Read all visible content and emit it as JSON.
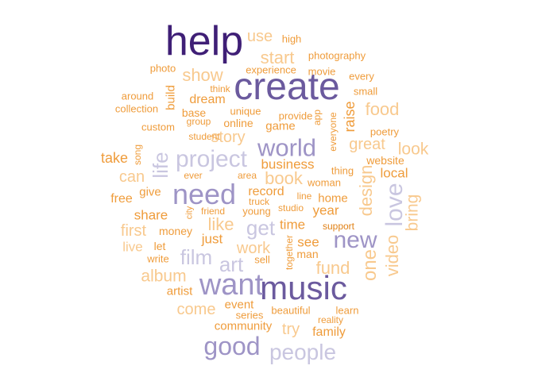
{
  "colors": {
    "darkest": "#3f1f76",
    "dark": "#6b5a9e",
    "mid": "#9e94c6",
    "light": "#c9c6e0",
    "peach": "#f8c98e",
    "orange": "#ef9c3b",
    "amber": "#e08116"
  },
  "words": [
    {
      "text": "help",
      "freq": 10
    },
    {
      "text": "create",
      "freq": 9
    },
    {
      "text": "music",
      "freq": 8
    },
    {
      "text": "want",
      "freq": 8
    },
    {
      "text": "need",
      "freq": 7
    },
    {
      "text": "world",
      "freq": 6
    },
    {
      "text": "good",
      "freq": 6
    },
    {
      "text": "new",
      "freq": 6
    },
    {
      "text": "project",
      "freq": 6
    },
    {
      "text": "people",
      "freq": 5
    },
    {
      "text": "love",
      "freq": 5
    },
    {
      "text": "life",
      "freq": 5
    },
    {
      "text": "get",
      "freq": 5
    },
    {
      "text": "film",
      "freq": 5
    },
    {
      "text": "art",
      "freq": 5
    },
    {
      "text": "one",
      "freq": 4
    },
    {
      "text": "video",
      "freq": 4
    },
    {
      "text": "book",
      "freq": 4
    },
    {
      "text": "like",
      "freq": 4
    },
    {
      "text": "fund",
      "freq": 4
    },
    {
      "text": "design",
      "freq": 4
    },
    {
      "text": "start",
      "freq": 4
    },
    {
      "text": "show",
      "freq": 4
    },
    {
      "text": "food",
      "freq": 4
    },
    {
      "text": "great",
      "freq": 4
    },
    {
      "text": "look",
      "freq": 4
    },
    {
      "text": "bring",
      "freq": 4
    },
    {
      "text": "album",
      "freq": 4
    },
    {
      "text": "work",
      "freq": 4
    },
    {
      "text": "try",
      "freq": 4
    },
    {
      "text": "use",
      "freq": 4
    },
    {
      "text": "story",
      "freq": 4
    },
    {
      "text": "can",
      "freq": 4
    },
    {
      "text": "first",
      "freq": 4
    },
    {
      "text": "come",
      "freq": 4
    },
    {
      "text": "raise",
      "freq": 3
    },
    {
      "text": "business",
      "freq": 3
    },
    {
      "text": "local",
      "freq": 3
    },
    {
      "text": "time",
      "freq": 3
    },
    {
      "text": "year",
      "freq": 3
    },
    {
      "text": "see",
      "freq": 3
    },
    {
      "text": "record",
      "freq": 3
    },
    {
      "text": "home",
      "freq": 3
    },
    {
      "text": "take",
      "freq": 3
    },
    {
      "text": "share",
      "freq": 3
    },
    {
      "text": "just",
      "freq": 3
    },
    {
      "text": "dream",
      "freq": 3
    },
    {
      "text": "family",
      "freq": 3
    },
    {
      "text": "community",
      "freq": 3
    },
    {
      "text": "event",
      "freq": 3
    },
    {
      "text": "artist",
      "freq": 3
    },
    {
      "text": "live",
      "freq": 3
    },
    {
      "text": "free",
      "freq": 3
    },
    {
      "text": "game",
      "freq": 3
    },
    {
      "text": "give",
      "freq": 3
    },
    {
      "text": "build",
      "freq": 3
    },
    {
      "text": "money",
      "freq": 2
    },
    {
      "text": "base",
      "freq": 2
    },
    {
      "text": "online",
      "freq": 2
    },
    {
      "text": "website",
      "freq": 2
    },
    {
      "text": "let",
      "freq": 2
    },
    {
      "text": "write",
      "freq": 2
    },
    {
      "text": "sell",
      "freq": 2
    },
    {
      "text": "man",
      "freq": 2
    },
    {
      "text": "woman",
      "freq": 2
    },
    {
      "text": "thing",
      "freq": 2
    },
    {
      "text": "learn",
      "freq": 2
    },
    {
      "text": "beautiful",
      "freq": 2
    },
    {
      "text": "series",
      "freq": 2
    },
    {
      "text": "reality",
      "freq": 2
    },
    {
      "text": "together",
      "freq": 2
    },
    {
      "text": "support",
      "freq": 2
    },
    {
      "text": "studio",
      "freq": 2
    },
    {
      "text": "young",
      "freq": 2
    },
    {
      "text": "truck",
      "freq": 2
    },
    {
      "text": "line",
      "freq": 2
    },
    {
      "text": "friend",
      "freq": 2
    },
    {
      "text": "city",
      "freq": 2
    },
    {
      "text": "area",
      "freq": 2
    },
    {
      "text": "ever",
      "freq": 2
    },
    {
      "text": "song",
      "freq": 2
    },
    {
      "text": "student",
      "freq": 2
    },
    {
      "text": "group",
      "freq": 2
    },
    {
      "text": "custom",
      "freq": 2
    },
    {
      "text": "collection",
      "freq": 2
    },
    {
      "text": "around",
      "freq": 2
    },
    {
      "text": "photo",
      "freq": 2
    },
    {
      "text": "think",
      "freq": 2
    },
    {
      "text": "unique",
      "freq": 2
    },
    {
      "text": "provide",
      "freq": 2
    },
    {
      "text": "app",
      "freq": 2
    },
    {
      "text": "everyone",
      "freq": 2
    },
    {
      "text": "poetry",
      "freq": 2
    },
    {
      "text": "small",
      "freq": 2
    },
    {
      "text": "every",
      "freq": 2
    },
    {
      "text": "experience",
      "freq": 2
    },
    {
      "text": "movie",
      "freq": 2
    },
    {
      "text": "photography",
      "freq": 2
    },
    {
      "text": "high",
      "freq": 2
    }
  ]
}
